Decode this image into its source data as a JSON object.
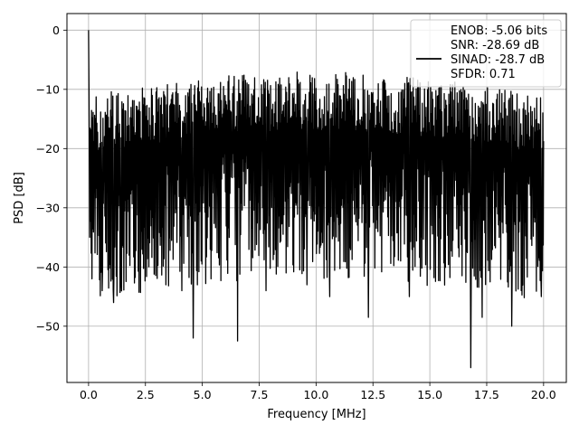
{
  "chart_data": {
    "type": "line",
    "title": "",
    "xlabel": "Frequency [MHz]",
    "ylabel": "PSD [dB]",
    "xlim": [
      -0.95,
      21.0
    ],
    "ylim": [
      -59.5,
      2.8
    ],
    "grid": true,
    "legend_position": "top-right",
    "x_ticks": [
      0.0,
      2.5,
      5.0,
      7.5,
      10.0,
      12.5,
      15.0,
      17.5,
      20.0
    ],
    "x_tick_labels": [
      "0.0",
      "2.5",
      "5.0",
      "7.5",
      "10.0",
      "12.5",
      "15.0",
      "17.5",
      "20.0"
    ],
    "y_ticks": [
      0,
      -10,
      -20,
      -30,
      -40,
      -50
    ],
    "y_tick_labels": [
      "0",
      "−10",
      "−20",
      "−30",
      "−40",
      "−50"
    ],
    "legend": {
      "lines": [
        "ENOB: -5.06 bits",
        "SNR: -28.69 dB",
        "SINAD: -28.7 dB",
        "SFDR: 0.71"
      ],
      "marker_line": 2
    },
    "series": [
      {
        "color": "#000000",
        "x_start": 0.0,
        "x_end": 20.0,
        "points": 1200,
        "peak_x": 0.0,
        "peak_y": 0.0,
        "notable_minima": [
          {
            "x": 0.15,
            "y": -42
          },
          {
            "x": 0.6,
            "y": -44
          },
          {
            "x": 1.1,
            "y": -46
          },
          {
            "x": 1.4,
            "y": -43
          },
          {
            "x": 3.4,
            "y": -43
          },
          {
            "x": 4.1,
            "y": -44
          },
          {
            "x": 4.6,
            "y": -52
          },
          {
            "x": 6.55,
            "y": -52.5
          },
          {
            "x": 7.8,
            "y": -44
          },
          {
            "x": 9.6,
            "y": -43
          },
          {
            "x": 10.6,
            "y": -45
          },
          {
            "x": 12.3,
            "y": -48.5
          },
          {
            "x": 14.1,
            "y": -45
          },
          {
            "x": 16.8,
            "y": -57
          },
          {
            "x": 17.3,
            "y": -48.5
          },
          {
            "x": 18.6,
            "y": -50
          },
          {
            "x": 19.9,
            "y": -45
          }
        ]
      }
    ]
  }
}
